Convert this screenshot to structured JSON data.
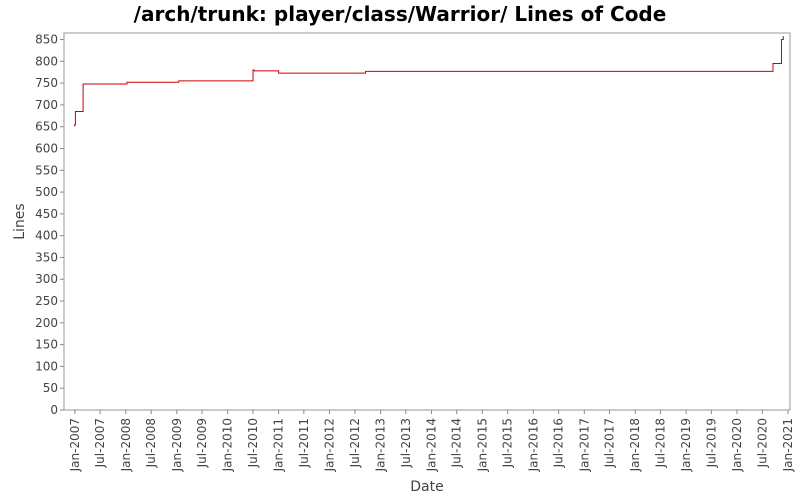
{
  "chart_data": {
    "type": "line",
    "title": "/arch/trunk: player/class/Warrior/ Lines of Code",
    "xlabel": "Date",
    "ylabel": "Lines",
    "ylim": [
      0,
      865
    ],
    "xlim": [
      "2006-10-15",
      "2021-01-15"
    ],
    "y_ticks": [
      0,
      50,
      100,
      150,
      200,
      250,
      300,
      350,
      400,
      450,
      500,
      550,
      600,
      650,
      700,
      750,
      800,
      850
    ],
    "x_ticks": [
      {
        "date": "2007-01-01",
        "label": "Jan-2007"
      },
      {
        "date": "2007-07-01",
        "label": "Jul-2007"
      },
      {
        "date": "2008-01-01",
        "label": "Jan-2008"
      },
      {
        "date": "2008-07-01",
        "label": "Jul-2008"
      },
      {
        "date": "2009-01-01",
        "label": "Jan-2009"
      },
      {
        "date": "2009-07-01",
        "label": "Jul-2009"
      },
      {
        "date": "2010-01-01",
        "label": "Jan-2010"
      },
      {
        "date": "2010-07-01",
        "label": "Jul-2010"
      },
      {
        "date": "2011-01-01",
        "label": "Jan-2011"
      },
      {
        "date": "2011-07-01",
        "label": "Jul-2011"
      },
      {
        "date": "2012-01-01",
        "label": "Jan-2012"
      },
      {
        "date": "2012-07-01",
        "label": "Jul-2012"
      },
      {
        "date": "2013-01-01",
        "label": "Jan-2013"
      },
      {
        "date": "2013-07-01",
        "label": "Jul-2013"
      },
      {
        "date": "2014-01-01",
        "label": "Jan-2014"
      },
      {
        "date": "2014-07-01",
        "label": "Jul-2014"
      },
      {
        "date": "2015-01-01",
        "label": "Jan-2015"
      },
      {
        "date": "2015-07-01",
        "label": "Jul-2015"
      },
      {
        "date": "2016-01-01",
        "label": "Jan-2016"
      },
      {
        "date": "2016-07-01",
        "label": "Jul-2016"
      },
      {
        "date": "2017-01-01",
        "label": "Jan-2017"
      },
      {
        "date": "2017-07-01",
        "label": "Jul-2017"
      },
      {
        "date": "2018-01-01",
        "label": "Jan-2018"
      },
      {
        "date": "2018-07-01",
        "label": "Jul-2018"
      },
      {
        "date": "2019-01-01",
        "label": "Jan-2019"
      },
      {
        "date": "2019-07-01",
        "label": "Jul-2019"
      },
      {
        "date": "2020-01-01",
        "label": "Jan-2020"
      },
      {
        "date": "2020-07-01",
        "label": "Jul-2020"
      },
      {
        "date": "2021-01-01",
        "label": "Jan-2021"
      }
    ],
    "grid": false,
    "legend": "none",
    "line_color": "#cc0000",
    "step": true,
    "series": [
      {
        "x": [
          "2006-12-25",
          "2007-01-01",
          "2007-01-05",
          "2007-03-01",
          "2007-06-01",
          "2008-01-10",
          "2009-01-15",
          "2010-07-01",
          "2010-07-10",
          "2011-01-01",
          "2012-09-15",
          "2020-09-15",
          "2020-11-15",
          "2020-11-28"
        ],
        "y": [
          652,
          655,
          685,
          748,
          748,
          752,
          755,
          780,
          778,
          773,
          777,
          795,
          850,
          858
        ]
      }
    ]
  }
}
